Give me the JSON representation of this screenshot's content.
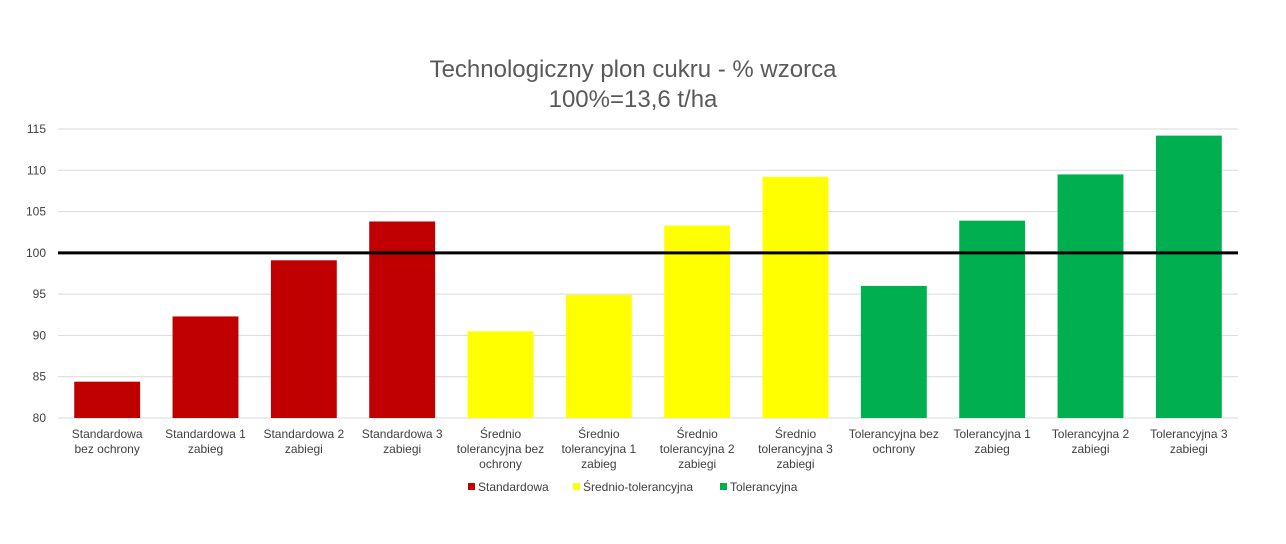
{
  "chart_data": {
    "type": "bar",
    "title": [
      "Technologiczny plon cukru - % wzorca",
      "100%=13,6 t/ha"
    ],
    "categories": [
      [
        "Standardowa",
        "bez ochrony"
      ],
      [
        "Standardowa 1",
        "zabieg"
      ],
      [
        "Standardowa 2",
        "zabiegi"
      ],
      [
        "Standardowa 3",
        "zabiegi"
      ],
      [
        "Średnio",
        "tolerancyjna bez",
        "ochrony"
      ],
      [
        "Średnio",
        "tolerancyjna 1",
        "zabieg"
      ],
      [
        "Średnio",
        "tolerancyjna 2",
        "zabiegi"
      ],
      [
        "Średnio",
        "tolerancyjna 3",
        "zabiegi"
      ],
      [
        "Tolerancyjna bez",
        "ochrony"
      ],
      [
        "Tolerancyjna 1",
        "zabieg"
      ],
      [
        "Tolerancyjna 2",
        "zabiegi"
      ],
      [
        "Tolerancyjna 3",
        "zabiegi"
      ]
    ],
    "values": [
      84.4,
      92.3,
      99.1,
      103.8,
      90.5,
      94.9,
      103.3,
      109.2,
      96.0,
      103.9,
      109.5,
      114.2
    ],
    "series_index": [
      0,
      0,
      0,
      0,
      1,
      1,
      1,
      1,
      2,
      2,
      2,
      2
    ],
    "legend": [
      {
        "name": "Standardowa",
        "color": "#C00000"
      },
      {
        "name": "Średnio-tolerancyjna",
        "color": "#FFFF00"
      },
      {
        "name": "Tolerancyjna",
        "color": "#00B050"
      }
    ],
    "reference_line": 100,
    "reference_color": "#000000",
    "yticks": [
      "80",
      "85",
      "90",
      "95",
      "100",
      "105",
      "110",
      "115"
    ],
    "ylim": [
      80,
      115
    ],
    "grid": true,
    "legend_position": "bottom"
  }
}
